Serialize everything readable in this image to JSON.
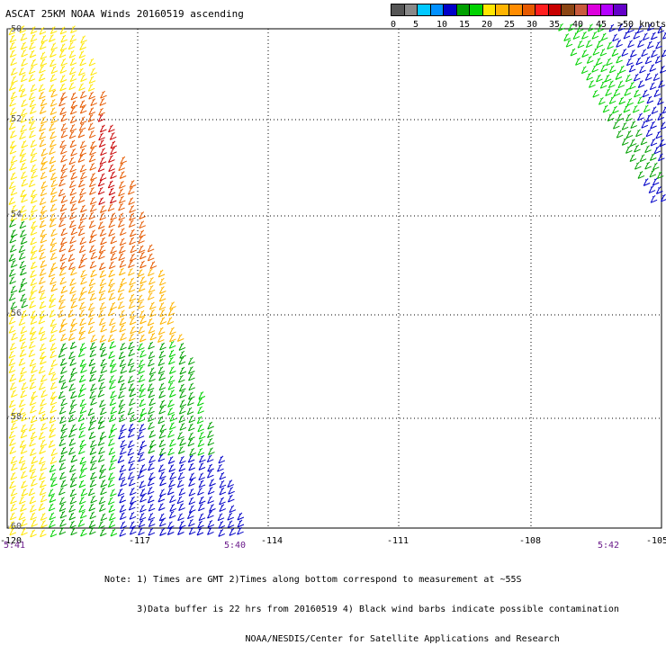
{
  "title": "ASCAT 25KM NOAA Winds 20160519 ascending",
  "legend": {
    "swatches": [
      {
        "color": "#555555"
      },
      {
        "color": "#888888"
      },
      {
        "color": "#00c8ff"
      },
      {
        "color": "#0090ff"
      },
      {
        "color": "#0000c8"
      },
      {
        "color": "#00a000"
      },
      {
        "color": "#00d200"
      },
      {
        "color": "#ffe600"
      },
      {
        "color": "#ffb400"
      },
      {
        "color": "#ff8c00"
      },
      {
        "color": "#e65a00"
      },
      {
        "color": "#ff1e1e"
      },
      {
        "color": "#c80000"
      },
      {
        "color": "#8b4513"
      },
      {
        "color": "#c85a3c"
      },
      {
        "color": "#dc00dc"
      },
      {
        "color": "#b400ff"
      },
      {
        "color": "#6400c8"
      }
    ],
    "labels": [
      "0",
      "5",
      "10",
      "15",
      "20",
      "25",
      "30",
      "35",
      "40",
      "45",
      ">50 knots"
    ]
  },
  "map": {
    "lon_range": [
      -120,
      -105
    ],
    "lat_range": [
      -50,
      -60
    ],
    "lat_labels": [
      "-50",
      "-52",
      "-54",
      "-56",
      "-58",
      "-60"
    ],
    "lon_labels": [
      "-120",
      "-117",
      "-114",
      "-111",
      "-108",
      "-105"
    ],
    "grid": true,
    "time_labels": [
      "5:41",
      "5:40",
      "5:42"
    ]
  },
  "notes": [
    "Note: 1) Times are GMT 2)Times along bottom correspond to measurement at ~55S",
    "      3)Data buffer is 22 hrs from 20160519 4) Black wind barbs indicate possible contamination",
    "                          NOAA/NESDIS/Center for Satellite Applications and Research"
  ]
}
